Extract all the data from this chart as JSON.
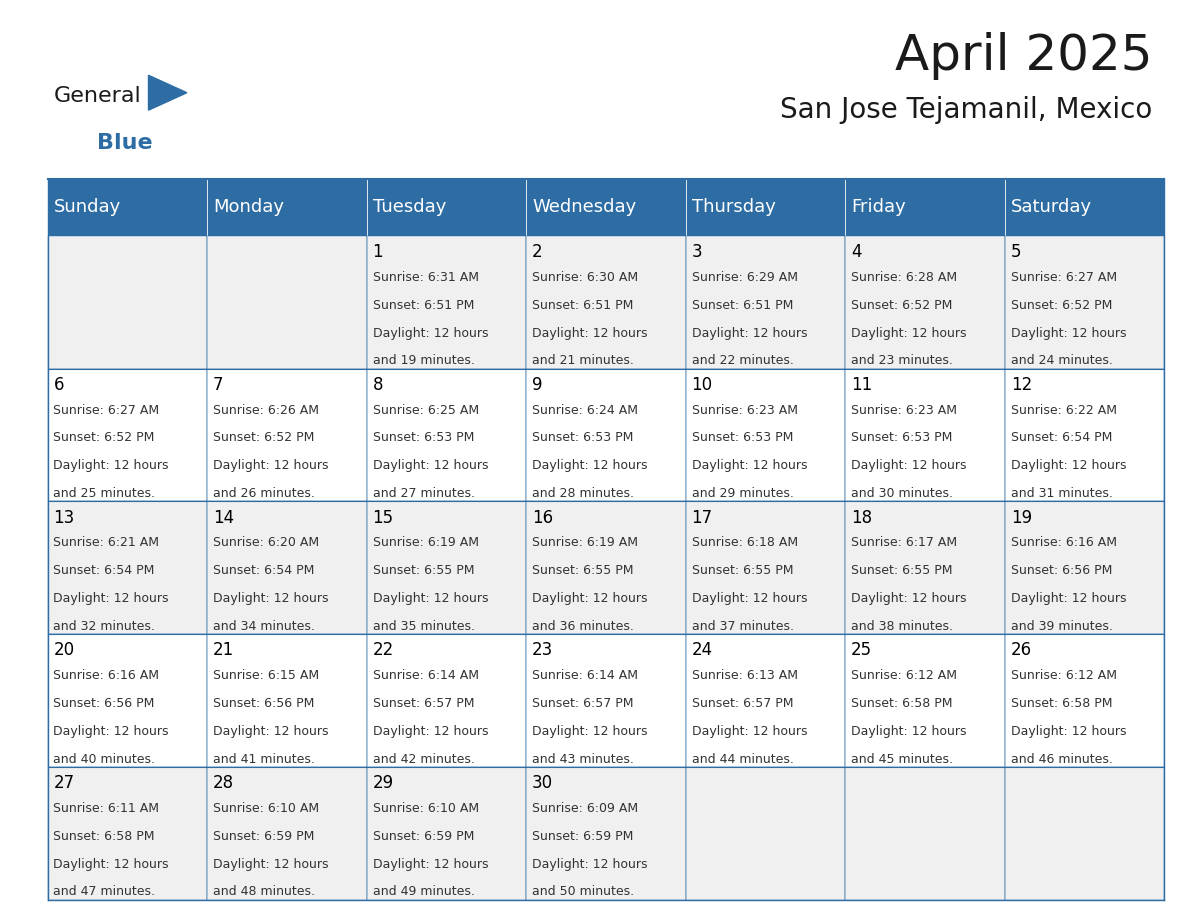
{
  "title": "April 2025",
  "subtitle": "San Jose Tejamanil, Mexico",
  "header_bg_color": "#2E6DA4",
  "header_text_color": "#FFFFFF",
  "row_bg_color_1": "#F0F0F0",
  "row_bg_color_2": "#FFFFFF",
  "border_color": "#2E6DA4",
  "day_number_color": "#000000",
  "cell_text_color": "#333333",
  "days_of_week": [
    "Sunday",
    "Monday",
    "Tuesday",
    "Wednesday",
    "Thursday",
    "Friday",
    "Saturday"
  ],
  "weeks": [
    [
      {
        "day": "",
        "sunrise": "",
        "sunset": "",
        "daylight": ""
      },
      {
        "day": "",
        "sunrise": "",
        "sunset": "",
        "daylight": ""
      },
      {
        "day": "1",
        "sunrise": "6:31 AM",
        "sunset": "6:51 PM",
        "daylight": "12 hours and 19 minutes."
      },
      {
        "day": "2",
        "sunrise": "6:30 AM",
        "sunset": "6:51 PM",
        "daylight": "12 hours and 21 minutes."
      },
      {
        "day": "3",
        "sunrise": "6:29 AM",
        "sunset": "6:51 PM",
        "daylight": "12 hours and 22 minutes."
      },
      {
        "day": "4",
        "sunrise": "6:28 AM",
        "sunset": "6:52 PM",
        "daylight": "12 hours and 23 minutes."
      },
      {
        "day": "5",
        "sunrise": "6:27 AM",
        "sunset": "6:52 PM",
        "daylight": "12 hours and 24 minutes."
      }
    ],
    [
      {
        "day": "6",
        "sunrise": "6:27 AM",
        "sunset": "6:52 PM",
        "daylight": "12 hours and 25 minutes."
      },
      {
        "day": "7",
        "sunrise": "6:26 AM",
        "sunset": "6:52 PM",
        "daylight": "12 hours and 26 minutes."
      },
      {
        "day": "8",
        "sunrise": "6:25 AM",
        "sunset": "6:53 PM",
        "daylight": "12 hours and 27 minutes."
      },
      {
        "day": "9",
        "sunrise": "6:24 AM",
        "sunset": "6:53 PM",
        "daylight": "12 hours and 28 minutes."
      },
      {
        "day": "10",
        "sunrise": "6:23 AM",
        "sunset": "6:53 PM",
        "daylight": "12 hours and 29 minutes."
      },
      {
        "day": "11",
        "sunrise": "6:23 AM",
        "sunset": "6:53 PM",
        "daylight": "12 hours and 30 minutes."
      },
      {
        "day": "12",
        "sunrise": "6:22 AM",
        "sunset": "6:54 PM",
        "daylight": "12 hours and 31 minutes."
      }
    ],
    [
      {
        "day": "13",
        "sunrise": "6:21 AM",
        "sunset": "6:54 PM",
        "daylight": "12 hours and 32 minutes."
      },
      {
        "day": "14",
        "sunrise": "6:20 AM",
        "sunset": "6:54 PM",
        "daylight": "12 hours and 34 minutes."
      },
      {
        "day": "15",
        "sunrise": "6:19 AM",
        "sunset": "6:55 PM",
        "daylight": "12 hours and 35 minutes."
      },
      {
        "day": "16",
        "sunrise": "6:19 AM",
        "sunset": "6:55 PM",
        "daylight": "12 hours and 36 minutes."
      },
      {
        "day": "17",
        "sunrise": "6:18 AM",
        "sunset": "6:55 PM",
        "daylight": "12 hours and 37 minutes."
      },
      {
        "day": "18",
        "sunrise": "6:17 AM",
        "sunset": "6:55 PM",
        "daylight": "12 hours and 38 minutes."
      },
      {
        "day": "19",
        "sunrise": "6:16 AM",
        "sunset": "6:56 PM",
        "daylight": "12 hours and 39 minutes."
      }
    ],
    [
      {
        "day": "20",
        "sunrise": "6:16 AM",
        "sunset": "6:56 PM",
        "daylight": "12 hours and 40 minutes."
      },
      {
        "day": "21",
        "sunrise": "6:15 AM",
        "sunset": "6:56 PM",
        "daylight": "12 hours and 41 minutes."
      },
      {
        "day": "22",
        "sunrise": "6:14 AM",
        "sunset": "6:57 PM",
        "daylight": "12 hours and 42 minutes."
      },
      {
        "day": "23",
        "sunrise": "6:14 AM",
        "sunset": "6:57 PM",
        "daylight": "12 hours and 43 minutes."
      },
      {
        "day": "24",
        "sunrise": "6:13 AM",
        "sunset": "6:57 PM",
        "daylight": "12 hours and 44 minutes."
      },
      {
        "day": "25",
        "sunrise": "6:12 AM",
        "sunset": "6:58 PM",
        "daylight": "12 hours and 45 minutes."
      },
      {
        "day": "26",
        "sunrise": "6:12 AM",
        "sunset": "6:58 PM",
        "daylight": "12 hours and 46 minutes."
      }
    ],
    [
      {
        "day": "27",
        "sunrise": "6:11 AM",
        "sunset": "6:58 PM",
        "daylight": "12 hours and 47 minutes."
      },
      {
        "day": "28",
        "sunrise": "6:10 AM",
        "sunset": "6:59 PM",
        "daylight": "12 hours and 48 minutes."
      },
      {
        "day": "29",
        "sunrise": "6:10 AM",
        "sunset": "6:59 PM",
        "daylight": "12 hours and 49 minutes."
      },
      {
        "day": "30",
        "sunrise": "6:09 AM",
        "sunset": "6:59 PM",
        "daylight": "12 hours and 50 minutes."
      },
      {
        "day": "",
        "sunrise": "",
        "sunset": "",
        "daylight": ""
      },
      {
        "day": "",
        "sunrise": "",
        "sunset": "",
        "daylight": ""
      },
      {
        "day": "",
        "sunrise": "",
        "sunset": "",
        "daylight": ""
      }
    ]
  ],
  "logo_text_general": "General",
  "logo_text_blue": "Blue",
  "logo_color_general": "#1a1a1a",
  "logo_color_blue": "#2E6DA4",
  "logo_triangle_color": "#2E6DA4",
  "title_fontsize": 36,
  "subtitle_fontsize": 20,
  "header_fontsize": 13,
  "day_num_fontsize": 12,
  "cell_text_fontsize": 9
}
